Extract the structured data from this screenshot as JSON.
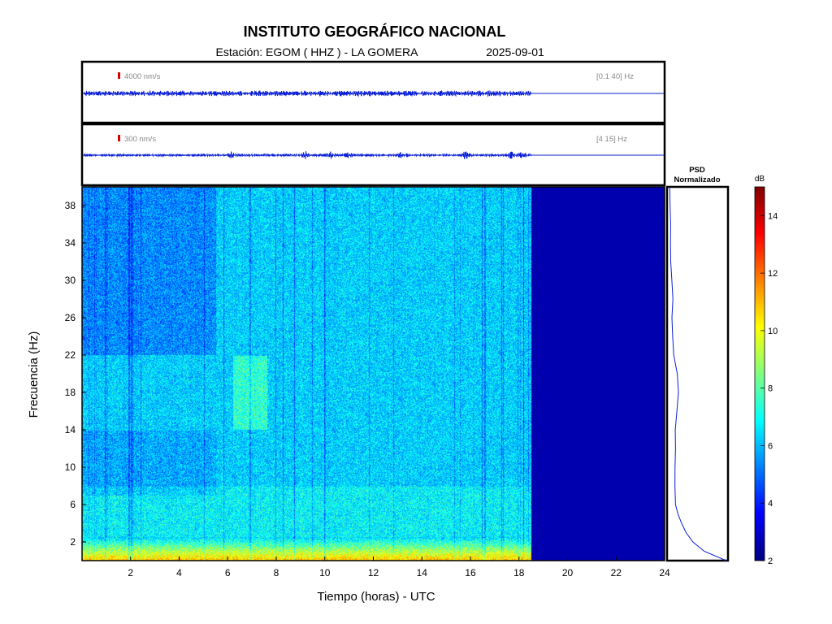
{
  "header": {
    "title": "INSTITUTO GEOGRÁFICO NACIONAL",
    "station_label": "Estación:  EGOM ( HHZ ) - LA GOMERA",
    "date": "2025-09-01"
  },
  "chart_data": [
    {
      "type": "line",
      "title": "",
      "scale_label": "4000 nm/s",
      "band_label": "[0.1 40] Hz",
      "xlim": [
        0,
        24
      ],
      "data_end_hour": 18.5,
      "description_series": [
        {
          "name": "",
          "trace": "broadband velocity seismogram, near-constant amplitude noise band until 18.5 h, flat line afterwards"
        }
      ],
      "colors": {
        "trace": "#0a1fd6",
        "scale_bar": "#dd0000"
      }
    },
    {
      "type": "line",
      "title": "",
      "scale_label": "300 nm/s",
      "band_label": "[4 15] Hz",
      "xlim": [
        0,
        24
      ],
      "data_end_hour": 18.5,
      "bursts_hours": [
        6.1,
        9.2,
        10.2,
        11.0,
        13.2,
        15.8,
        17.7,
        18.1
      ],
      "colors": {
        "trace": "#0a1fd6",
        "scale_bar": "#dd0000"
      }
    },
    {
      "type": "heatmap",
      "title": "",
      "xlabel": "Tiempo (horas) - UTC",
      "ylabel": "Frecuencia  (Hz)",
      "xlim": [
        0,
        24
      ],
      "ylim": [
        0,
        40
      ],
      "xticks": [
        2,
        4,
        6,
        8,
        10,
        12,
        14,
        16,
        18,
        20,
        22,
        24
      ],
      "yticks": [
        2,
        6,
        10,
        14,
        18,
        22,
        26,
        30,
        34,
        38
      ],
      "data_end_hour": 18.5,
      "colorbar": {
        "label": "dB",
        "range": [
          2,
          15
        ],
        "ticks": [
          2,
          4,
          6,
          8,
          10,
          12,
          14
        ]
      },
      "colormap": [
        "#00007f",
        "#0000ff",
        "#0080ff",
        "#00ffff",
        "#80ff80",
        "#ffff00",
        "#ff8000",
        "#ff0000",
        "#800000"
      ]
    },
    {
      "type": "line",
      "title": "PSD\nNormalizado",
      "title_lines": [
        "PSD",
        "Normalizado"
      ],
      "orientation": "vertical",
      "y_frequency_hz": [
        0,
        1,
        2,
        3,
        4,
        5,
        6,
        8,
        10,
        12,
        14,
        16,
        18,
        20,
        22,
        24,
        26,
        28,
        30,
        32,
        34,
        36,
        38,
        40
      ],
      "x_normalized": [
        1.0,
        0.62,
        0.42,
        0.3,
        0.22,
        0.16,
        0.12,
        0.11,
        0.11,
        0.12,
        0.11,
        0.14,
        0.17,
        0.15,
        0.09,
        0.07,
        0.06,
        0.07,
        0.05,
        0.04,
        0.03,
        0.03,
        0.02,
        0.02
      ]
    }
  ]
}
